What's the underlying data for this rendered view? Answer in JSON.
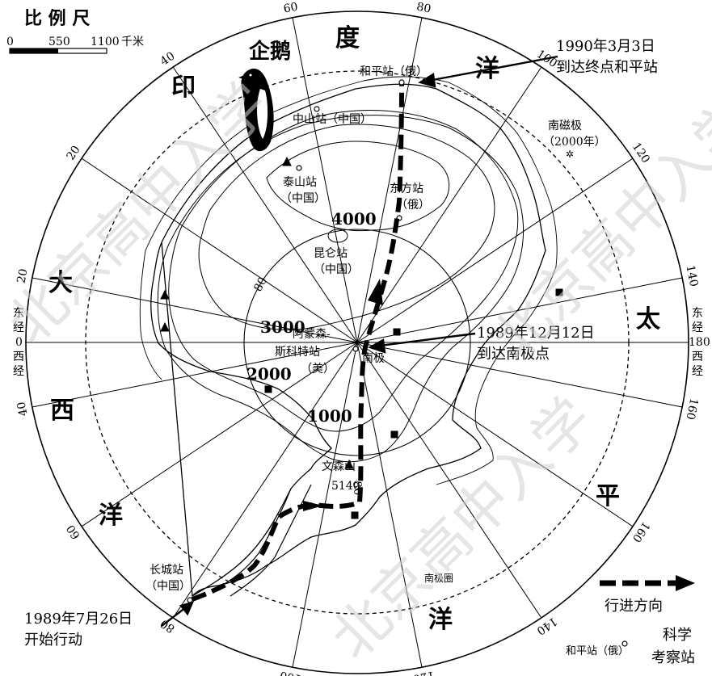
{
  "scale_bar": {
    "title": "比 例 尺",
    "ticks": [
      "0",
      "550",
      "1100"
    ],
    "unit": "千米"
  },
  "meridian_labels": [
    {
      "text": "80"
    },
    {
      "text": "100"
    },
    {
      "text": "120"
    },
    {
      "text": "140"
    },
    {
      "text": "160"
    },
    {
      "text": "160"
    },
    {
      "text": "140"
    },
    {
      "text": "120"
    },
    {
      "text": "100"
    },
    {
      "text": "80"
    },
    {
      "text": "60"
    },
    {
      "text": "40"
    },
    {
      "text": "20"
    },
    {
      "text": "20"
    },
    {
      "text": "40"
    },
    {
      "text": "60"
    }
  ],
  "meridian_edge": {
    "left_top": "东",
    "left_mid": "经",
    "left_zero": "0",
    "left_mid2": "西",
    "left_bot": "经",
    "right_top": "东",
    "right_mid": "经",
    "right_180": "180",
    "right_mid2": "西",
    "right_bot": "经"
  },
  "inner_lat_labels": [
    "80",
    "80"
  ],
  "ocean_chars": {
    "indian": [
      "印",
      "度",
      "洋"
    ],
    "atlantic": [
      "大",
      "西",
      "洋"
    ],
    "pacific": [
      "太",
      "平",
      "洋"
    ]
  },
  "penguin_label": "企鹅",
  "contours": [
    "4000",
    "3000",
    "2000",
    "1000"
  ],
  "stations": {
    "heping": "和平站（俄）",
    "zhongshan": "中山站（中国）",
    "taishan_1": "泰山站",
    "taishan_2": "（中国）",
    "dongfang_1": "东方站",
    "dongfang_2": "（俄）",
    "kunlun_1": "昆仑站",
    "kunlun_2": "（中国）",
    "amundsen_1": "阿蒙森-",
    "amundsen_2": "斯科特站",
    "amundsen_3": "（美）",
    "south_pole": "南极",
    "vinson_1": "文森山",
    "vinson_2": "5140",
    "changcheng_1": "长城站",
    "changcheng_2": "（中国）",
    "magnetic_1": "南磁极",
    "magnetic_2": "（2000年）",
    "antarctic_circle": "南极圈"
  },
  "annotations": {
    "end_line1": "1990年3月3日",
    "end_line2": "到达终点和平站",
    "pole_line1": "1989年12月12日",
    "pole_line2": "到达南极点",
    "start_line1": "1989年7月26日",
    "start_line2": "开始行动"
  },
  "legend": {
    "route_label": "行进方向",
    "station_example": "和平站（俄）",
    "station_type_1": "科学",
    "station_type_2": "考察站"
  },
  "watermark_text": "北京高中入学",
  "colors": {
    "ink": "#000000",
    "watermark": "#c8c8c8",
    "background": "#ffffff"
  }
}
